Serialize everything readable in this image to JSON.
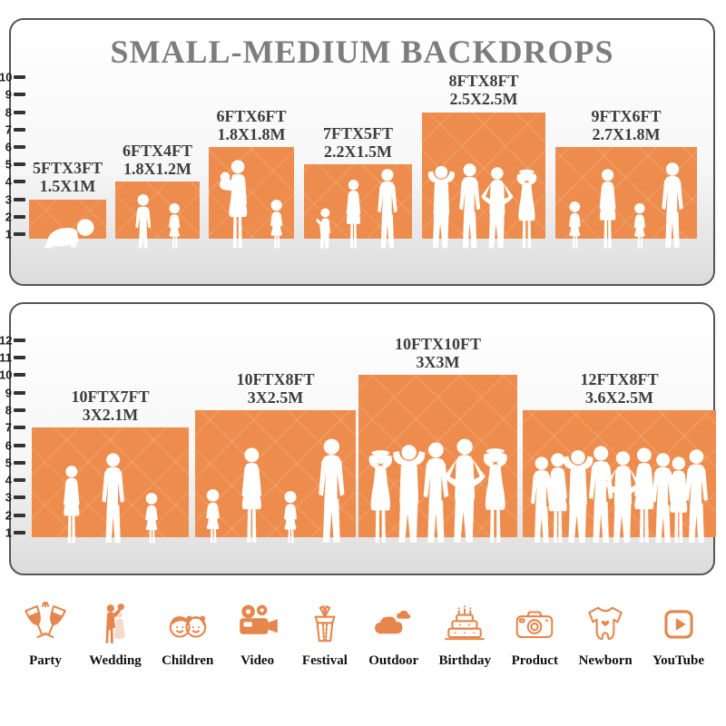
{
  "title": "SMALL-MEDIUM BACKDROPS",
  "colors": {
    "backdrop_orange": "#ED8C4C",
    "icon_orange": "#E5864C",
    "label_text": "#3D3D3D",
    "title_gray": "#7D7D7D",
    "panel_border": "#555555"
  },
  "panel1": {
    "ruler_max": 10,
    "ruler_unit": "FT",
    "backdrops": [
      {
        "size_ft": "5FTX3FT",
        "size_m": "1.5X1M",
        "width_ft": 5,
        "height_ft": 3,
        "figures": [
          [
            "baby",
            36
          ]
        ]
      },
      {
        "size_ft": "6FTX4FT",
        "size_m": "1.8X1.2M",
        "width_ft": 6,
        "height_ft": 4,
        "figures": [
          [
            "boy",
            62
          ],
          [
            "girl",
            52
          ]
        ]
      },
      {
        "size_ft": "6FTX6FT",
        "size_m": "1.8X1.8M",
        "width_ft": 6,
        "height_ft": 6,
        "figures": [
          [
            "woman-baby",
            100
          ],
          [
            "girl",
            56
          ]
        ]
      },
      {
        "size_ft": "7FTX5FT",
        "size_m": "2.2X1.5M",
        "width_ft": 7,
        "height_ft": 5,
        "figures": [
          [
            "toddler",
            46
          ],
          [
            "woman",
            78
          ],
          [
            "man",
            90
          ]
        ]
      },
      {
        "size_ft": "8FTX8FT",
        "size_m": "2.5X2.5M",
        "width_ft": 8,
        "height_ft": 8,
        "figures": [
          [
            "man-armsup",
            94
          ],
          [
            "man",
            96
          ],
          [
            "man-hips",
            92
          ],
          [
            "woman-armsup",
            90
          ]
        ]
      },
      {
        "size_ft": "9FTX6FT",
        "size_m": "2.7X1.8M",
        "width_ft": 9,
        "height_ft": 6,
        "figures": [
          [
            "girl",
            54
          ],
          [
            "woman",
            90
          ],
          [
            "girl",
            52
          ],
          [
            "man",
            97
          ]
        ]
      }
    ]
  },
  "panel2": {
    "ruler_max": 12,
    "ruler_unit": "FT",
    "backdrops": [
      {
        "size_ft": "10FTX7FT",
        "size_m": "3X2.1M",
        "width_ft": 10,
        "height_ft": 7,
        "figures": [
          [
            "woman",
            88
          ],
          [
            "man",
            102
          ],
          [
            "girl",
            58
          ]
        ]
      },
      {
        "size_ft": "10FTX8FT",
        "size_m": "3X2.5M",
        "width_ft": 10,
        "height_ft": 8,
        "figures": [
          [
            "girl",
            62
          ],
          [
            "woman",
            108
          ],
          [
            "girl",
            60
          ],
          [
            "man",
            118
          ]
        ]
      },
      {
        "size_ft": "10FTX10FT",
        "size_m": "3X3M",
        "width_ft": 10,
        "height_ft": 10,
        "figures": [
          [
            "woman-armsup",
            106
          ],
          [
            "man-armsup",
            112
          ],
          [
            "man",
            114
          ],
          [
            "man-hips",
            118
          ],
          [
            "woman-armsup",
            108
          ]
        ]
      },
      {
        "size_ft": "12FTX8FT",
        "size_m": "3.6X2.5M",
        "width_ft": 12,
        "height_ft": 8,
        "figures": [
          [
            "man",
            98
          ],
          [
            "woman",
            102
          ],
          [
            "man-armsup",
            106
          ],
          [
            "man",
            110
          ],
          [
            "man-hips",
            104
          ],
          [
            "woman",
            108
          ],
          [
            "man",
            102
          ],
          [
            "woman",
            98
          ],
          [
            "man",
            106
          ]
        ]
      }
    ]
  },
  "categories": [
    {
      "label": "Party",
      "icon": "party-icon"
    },
    {
      "label": "Wedding",
      "icon": "wedding-icon"
    },
    {
      "label": "Children",
      "icon": "children-icon"
    },
    {
      "label": "Video",
      "icon": "video-icon"
    },
    {
      "label": "Festival",
      "icon": "festival-icon"
    },
    {
      "label": "Outdoor",
      "icon": "outdoor-icon"
    },
    {
      "label": "Birthday",
      "icon": "birthday-icon"
    },
    {
      "label": "Product",
      "icon": "product-icon"
    },
    {
      "label": "Newborn",
      "icon": "newborn-icon"
    },
    {
      "label": "YouTube",
      "icon": "youtube-icon"
    }
  ]
}
